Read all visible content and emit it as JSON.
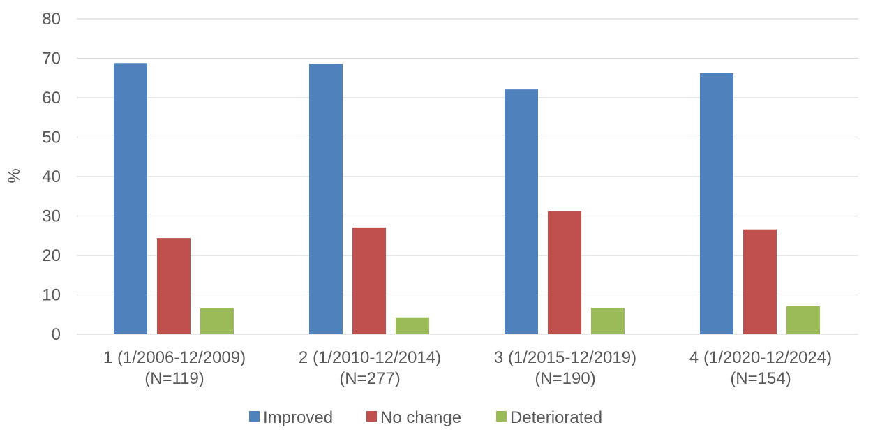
{
  "chart_data": {
    "type": "bar",
    "title": "",
    "xlabel": "",
    "ylabel": "%",
    "ylim": [
      0,
      80
    ],
    "yticks": [
      0,
      10,
      20,
      30,
      40,
      50,
      60,
      70,
      80
    ],
    "grid": true,
    "legend_position": "bottom",
    "categories": [
      [
        "1 (1/2006-12/2009)",
        "(N=119)"
      ],
      [
        "2 (1/2010-12/2014)",
        "(N=277)"
      ],
      [
        "3 (1/2015-12/2019)",
        "(N=190)"
      ],
      [
        "4 (1/2020-12/2024)",
        "(N=154)"
      ]
    ],
    "series": [
      {
        "name": "Improved",
        "color": "#4F81BD",
        "values": [
          68.8,
          68.6,
          62.1,
          66.2
        ]
      },
      {
        "name": "No change",
        "color": "#C0504D",
        "values": [
          24.4,
          27.1,
          31.2,
          26.6
        ]
      },
      {
        "name": "Deteriorated",
        "color": "#9BBB59",
        "values": [
          6.6,
          4.3,
          6.7,
          7.1
        ]
      }
    ]
  },
  "colors": {
    "gridline": "#D9D9D9",
    "axis": "#D9D9D9",
    "text": "#595959"
  }
}
